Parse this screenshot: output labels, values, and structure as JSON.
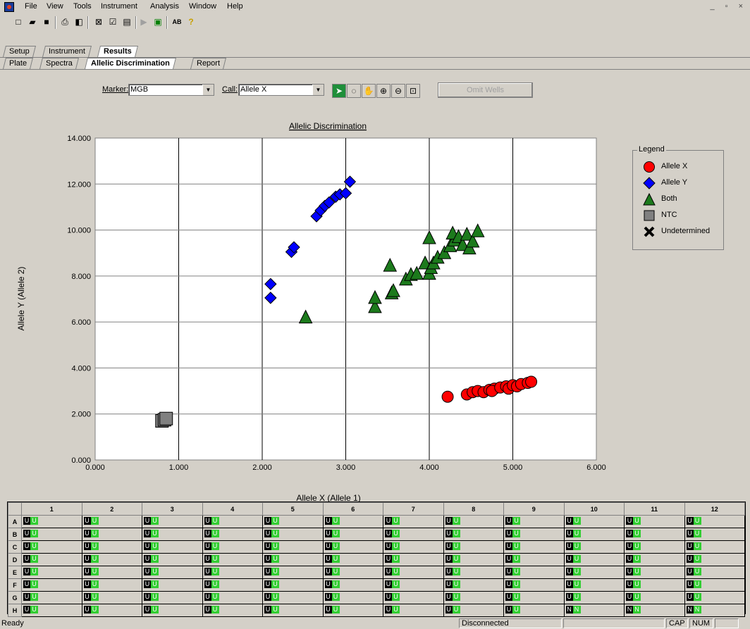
{
  "menu": [
    "File",
    "View",
    "Tools",
    "Instrument",
    "Analysis",
    "Window",
    "Help"
  ],
  "window_buttons": "_ ▫ ×",
  "toolbar_icons": [
    "new-icon",
    "open-icon",
    "save-icon",
    "print-icon",
    "print-preview-icon",
    "analyze-icon",
    "edit-icon",
    "display-icon",
    "run-icon",
    "run-to-icon",
    "spelling-icon",
    "help-icon"
  ],
  "tabs_top": [
    "Setup",
    "Instrument",
    "Results"
  ],
  "tabs_sub": [
    "Plate",
    "Spectra",
    "Allelic Discrimination",
    "Report"
  ],
  "controls": {
    "marker_label": "Marker:",
    "marker_value": "MGB",
    "call_label": "Call:",
    "call_value": "Allele X",
    "omit_label": "Omit Wells"
  },
  "legend": {
    "title": "Legend",
    "items": [
      {
        "label": "Allele X",
        "color": "#ff0000",
        "shape": "circle"
      },
      {
        "label": "Allele Y",
        "color": "#0000ff",
        "shape": "diamond"
      },
      {
        "label": "Both",
        "color": "#1c7a1c",
        "shape": "triangle"
      },
      {
        "label": "NTC",
        "color": "#808080",
        "shape": "square"
      },
      {
        "label": "Undetermined",
        "color": "#000000",
        "shape": "x"
      }
    ]
  },
  "chart_data": {
    "type": "scatter",
    "title": "Allelic Discrimination",
    "xlabel": "Allele X (Allele 1)",
    "ylabel": "Allele Y (Allele 2)",
    "xlim": [
      0,
      6
    ],
    "ylim": [
      0,
      14
    ],
    "xticks": [
      "0.000",
      "1.000",
      "2.000",
      "3.000",
      "4.000",
      "5.000",
      "6.000"
    ],
    "yticks": [
      "0.000",
      "2.000",
      "4.000",
      "6.000",
      "8.000",
      "10.000",
      "12.000",
      "14.000"
    ],
    "grid": "x-and-y",
    "legend_position": "right",
    "series": [
      {
        "name": "Allele X",
        "color": "#ff0000",
        "shape": "circle",
        "points": [
          [
            4.22,
            2.75
          ],
          [
            4.45,
            2.85
          ],
          [
            4.52,
            2.95
          ],
          [
            4.58,
            3.0
          ],
          [
            4.65,
            2.95
          ],
          [
            4.72,
            3.05
          ],
          [
            4.78,
            3.1
          ],
          [
            4.75,
            3.0
          ],
          [
            4.85,
            3.15
          ],
          [
            4.92,
            3.2
          ],
          [
            4.95,
            3.1
          ],
          [
            5.0,
            3.25
          ],
          [
            5.05,
            3.2
          ],
          [
            5.1,
            3.3
          ],
          [
            5.18,
            3.35
          ],
          [
            5.22,
            3.4
          ]
        ]
      },
      {
        "name": "Allele Y",
        "color": "#0000ff",
        "shape": "diamond",
        "points": [
          [
            2.1,
            7.05
          ],
          [
            2.1,
            7.65
          ],
          [
            2.35,
            9.05
          ],
          [
            2.38,
            9.25
          ],
          [
            2.65,
            10.6
          ],
          [
            2.7,
            10.85
          ],
          [
            2.75,
            11.05
          ],
          [
            2.8,
            11.2
          ],
          [
            2.88,
            11.45
          ],
          [
            2.93,
            11.55
          ],
          [
            3.0,
            11.6
          ],
          [
            3.05,
            12.1
          ]
        ]
      },
      {
        "name": "Both",
        "color": "#1c7a1c",
        "shape": "triangle",
        "points": [
          [
            2.52,
            6.2
          ],
          [
            3.35,
            6.65
          ],
          [
            3.35,
            7.05
          ],
          [
            3.55,
            7.25
          ],
          [
            3.57,
            7.35
          ],
          [
            3.53,
            8.45
          ],
          [
            3.72,
            7.85
          ],
          [
            3.78,
            8.05
          ],
          [
            3.85,
            8.1
          ],
          [
            3.95,
            8.55
          ],
          [
            4.0,
            8.1
          ],
          [
            4.02,
            8.35
          ],
          [
            4.05,
            8.55
          ],
          [
            4.1,
            8.8
          ],
          [
            4.0,
            9.65
          ],
          [
            4.18,
            9.0
          ],
          [
            4.25,
            9.3
          ],
          [
            4.3,
            9.55
          ],
          [
            4.28,
            9.85
          ],
          [
            4.35,
            9.7
          ],
          [
            4.4,
            9.35
          ],
          [
            4.45,
            9.8
          ],
          [
            4.48,
            9.2
          ],
          [
            4.52,
            9.5
          ],
          [
            4.58,
            9.95
          ]
        ]
      },
      {
        "name": "NTC",
        "color": "#808080",
        "shape": "square",
        "points": [
          [
            0.8,
            1.7
          ],
          [
            0.83,
            1.75
          ],
          [
            0.85,
            1.8
          ]
        ]
      }
    ]
  },
  "plate": {
    "columns": [
      "1",
      "2",
      "3",
      "4",
      "5",
      "6",
      "7",
      "8",
      "9",
      "10",
      "11",
      "12"
    ],
    "rows": [
      {
        "label": "A",
        "calls": [
          "U",
          "U",
          "U",
          "U",
          "U",
          "U",
          "U",
          "U",
          "U",
          "U",
          "U",
          "U"
        ]
      },
      {
        "label": "B",
        "calls": [
          "U",
          "U",
          "U",
          "U",
          "U",
          "U",
          "U",
          "U",
          "U",
          "U",
          "U",
          "U"
        ]
      },
      {
        "label": "C",
        "calls": [
          "U",
          "U",
          "U",
          "U",
          "U",
          "U",
          "U",
          "U",
          "U",
          "U",
          "U",
          "U"
        ]
      },
      {
        "label": "D",
        "calls": [
          "U",
          "U",
          "U",
          "U",
          "U",
          "U",
          "U",
          "U",
          "U",
          "U",
          "U",
          "U"
        ]
      },
      {
        "label": "E",
        "calls": [
          "U",
          "U",
          "U",
          "U",
          "U",
          "U",
          "U",
          "U",
          "U",
          "U",
          "U",
          "U"
        ]
      },
      {
        "label": "F",
        "calls": [
          "U",
          "U",
          "U",
          "U",
          "U",
          "U",
          "U",
          "U",
          "U",
          "U",
          "U",
          "U"
        ]
      },
      {
        "label": "G",
        "calls": [
          "U",
          "U",
          "U",
          "U",
          "U",
          "U",
          "U",
          "U",
          "U",
          "U",
          "U",
          "U"
        ]
      },
      {
        "label": "H",
        "calls": [
          "U",
          "U",
          "U",
          "U",
          "U",
          "U",
          "U",
          "U",
          "U",
          "N",
          "N",
          "N"
        ]
      }
    ]
  },
  "status": {
    "left": "Ready",
    "connection": "Disconnected",
    "cap": "CAP",
    "num": "NUM"
  }
}
